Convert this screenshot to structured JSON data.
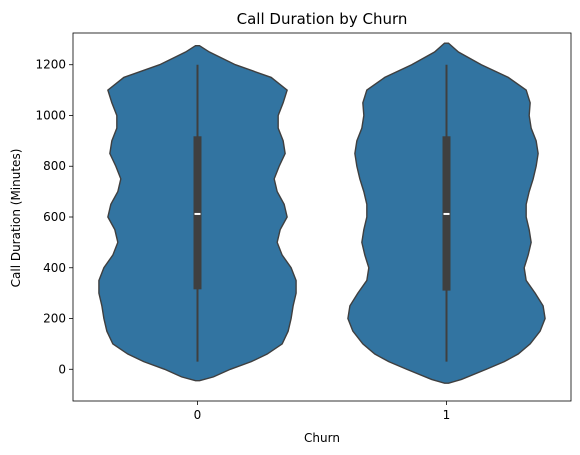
{
  "chart_data": {
    "type": "violin",
    "title": "Call Duration by Churn",
    "xlabel": "Churn",
    "ylabel": "Call Duration (Minutes)",
    "categories": [
      "0",
      "1"
    ],
    "ylim": [
      -125,
      1325
    ],
    "yticks": [
      0,
      200,
      400,
      600,
      800,
      1000,
      1200
    ],
    "grid": false,
    "legend": "none",
    "color": "#3274a1",
    "edge_color": "#3f3f3f",
    "violins": [
      {
        "category": "0",
        "min": 30,
        "q1": 315,
        "median": 612,
        "q3": 918,
        "max": 1200,
        "kde_low": -45,
        "kde_high": 1275,
        "profile": [
          [
            -45,
            0.02
          ],
          [
            -30,
            0.16
          ],
          [
            0,
            0.33
          ],
          [
            30,
            0.54
          ],
          [
            60,
            0.7
          ],
          [
            100,
            0.85
          ],
          [
            150,
            0.91
          ],
          [
            200,
            0.94
          ],
          [
            250,
            0.96
          ],
          [
            300,
            0.99
          ],
          [
            350,
            0.99
          ],
          [
            400,
            0.94
          ],
          [
            450,
            0.85
          ],
          [
            500,
            0.8
          ],
          [
            550,
            0.83
          ],
          [
            600,
            0.9
          ],
          [
            650,
            0.87
          ],
          [
            700,
            0.8
          ],
          [
            750,
            0.77
          ],
          [
            800,
            0.82
          ],
          [
            850,
            0.88
          ],
          [
            900,
            0.86
          ],
          [
            950,
            0.81
          ],
          [
            1000,
            0.81
          ],
          [
            1050,
            0.86
          ],
          [
            1100,
            0.9
          ],
          [
            1150,
            0.74
          ],
          [
            1200,
            0.38
          ],
          [
            1250,
            0.12
          ],
          [
            1275,
            0.02
          ]
        ]
      },
      {
        "category": "1",
        "min": 30,
        "q1": 310,
        "median": 612,
        "q3": 918,
        "max": 1200,
        "kde_low": -55,
        "kde_high": 1285,
        "profile": [
          [
            -55,
            0.02
          ],
          [
            -40,
            0.15
          ],
          [
            0,
            0.4
          ],
          [
            30,
            0.58
          ],
          [
            60,
            0.72
          ],
          [
            100,
            0.84
          ],
          [
            150,
            0.94
          ],
          [
            200,
            0.99
          ],
          [
            250,
            0.97
          ],
          [
            300,
            0.89
          ],
          [
            350,
            0.8
          ],
          [
            400,
            0.78
          ],
          [
            450,
            0.82
          ],
          [
            500,
            0.85
          ],
          [
            550,
            0.83
          ],
          [
            600,
            0.8
          ],
          [
            650,
            0.8
          ],
          [
            700,
            0.83
          ],
          [
            750,
            0.87
          ],
          [
            800,
            0.9
          ],
          [
            850,
            0.92
          ],
          [
            900,
            0.9
          ],
          [
            950,
            0.85
          ],
          [
            1000,
            0.83
          ],
          [
            1050,
            0.84
          ],
          [
            1100,
            0.8
          ],
          [
            1150,
            0.62
          ],
          [
            1200,
            0.35
          ],
          [
            1250,
            0.12
          ],
          [
            1285,
            0.02
          ]
        ]
      }
    ]
  }
}
